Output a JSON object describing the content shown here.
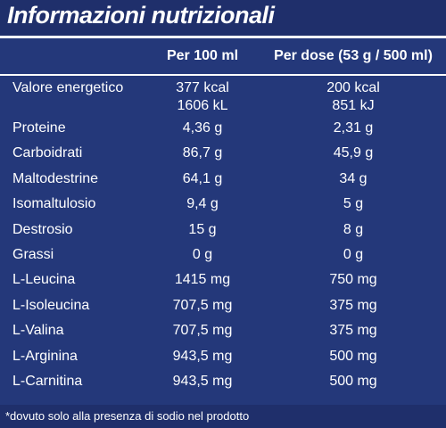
{
  "title": "Informazioni nutrizionali",
  "columns": {
    "per100": "Per 100 ml",
    "perDose": "Per dose (53 g / 500 ml)"
  },
  "energy": {
    "name": "Valore energetico",
    "per100_kcal": "377 kcal",
    "per100_kj": "1606 kL",
    "dose_kcal": "200 kcal",
    "dose_kj": "851 kJ"
  },
  "rows": [
    {
      "name": "Proteine",
      "per100": "4,36 g",
      "dose": "2,31 g"
    },
    {
      "name": "Carboidrati",
      "per100": "86,7 g",
      "dose": "45,9 g"
    },
    {
      "name": "Maltodestrine",
      "per100": "64,1 g",
      "dose": "34 g"
    },
    {
      "name": "Isomaltulosio",
      "per100": "9,4 g",
      "dose": "5 g"
    },
    {
      "name": "Destrosio",
      "per100": "15 g",
      "dose": "8 g"
    },
    {
      "name": "Grassi",
      "per100": "0 g",
      "dose": "0 g"
    },
    {
      "name": "L-Leucina",
      "per100": "1415 mg",
      "dose": "750 mg"
    },
    {
      "name": "L-Isoleucina",
      "per100": "707,5 mg",
      "dose": "375 mg"
    },
    {
      "name": "L-Valina",
      "per100": "707,5 mg",
      "dose": "375 mg"
    },
    {
      "name": "L-Arginina",
      "per100": "943,5 mg",
      "dose": "500 mg"
    },
    {
      "name": "L-Carnitina",
      "per100": "943,5 mg",
      "dose": "500 mg"
    }
  ],
  "footnote": "*dovuto solo alla presenza di sodio nel prodotto"
}
